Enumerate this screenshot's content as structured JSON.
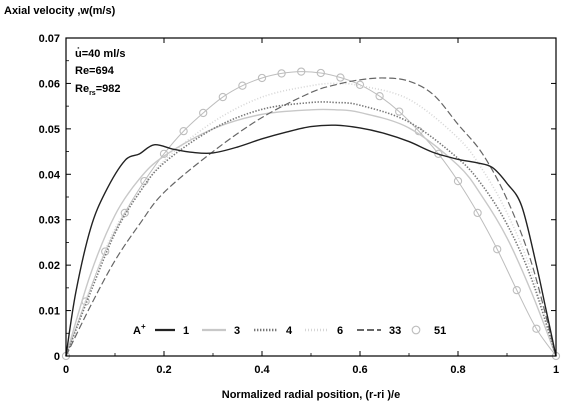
{
  "chart_data": {
    "type": "line",
    "title": "",
    "ylabel": "Axial velocity ,w(m/s)",
    "xlabel": "Normalized radial position, (r-ri )/e",
    "xlim": [
      0,
      1
    ],
    "ylim": [
      0,
      0.07
    ],
    "x_ticks": [
      "0",
      "0.2",
      "0.4",
      "0.6",
      "0.8",
      "1"
    ],
    "y_ticks": [
      "0",
      "0.01",
      "0.02",
      "0.03",
      "0.04",
      "0.05",
      "0.06",
      "0.07"
    ],
    "annotations": {
      "flow_rate": "u̇=40 ml/s",
      "re": "Re=694",
      "re_rs_prefix": "Re",
      "re_rs_sub": "rs",
      "re_rs_value": "=982"
    },
    "legend_title_base": "A",
    "legend_title_sup": "+",
    "legend_placement": "bottom",
    "series": [
      {
        "name": "1",
        "color": "#222222",
        "dash": "solid",
        "width": 1.4,
        "x": [
          0,
          0.02,
          0.05,
          0.08,
          0.12,
          0.15,
          0.18,
          0.22,
          0.26,
          0.3,
          0.35,
          0.4,
          0.45,
          0.5,
          0.55,
          0.6,
          0.65,
          0.7,
          0.75,
          0.8,
          0.84,
          0.87,
          0.9,
          0.93,
          0.96,
          0.98,
          1
        ],
        "y": [
          0,
          0.014,
          0.028,
          0.036,
          0.043,
          0.0445,
          0.0465,
          0.0455,
          0.0448,
          0.0447,
          0.046,
          0.0478,
          0.0493,
          0.0505,
          0.0508,
          0.0502,
          0.049,
          0.0472,
          0.0448,
          0.0433,
          0.0425,
          0.0415,
          0.038,
          0.033,
          0.02,
          0.01,
          0
        ]
      },
      {
        "name": "3",
        "color": "#c8c8c8",
        "dash": "solid",
        "width": 1.4,
        "x": [
          0,
          0.05,
          0.1,
          0.15,
          0.2,
          0.3,
          0.4,
          0.5,
          0.55,
          0.6,
          0.7,
          0.8,
          0.85,
          0.9,
          0.95,
          1
        ],
        "y": [
          0,
          0.018,
          0.031,
          0.039,
          0.044,
          0.05,
          0.0532,
          0.0542,
          0.0542,
          0.0536,
          0.0502,
          0.042,
          0.035,
          0.026,
          0.014,
          0
        ]
      },
      {
        "name": "4",
        "color": "#777777",
        "dash": "1.4,1.6",
        "width": 1.6,
        "x": [
          0,
          0.05,
          0.1,
          0.15,
          0.2,
          0.3,
          0.4,
          0.5,
          0.55,
          0.6,
          0.7,
          0.8,
          0.85,
          0.9,
          0.95,
          1
        ],
        "y": [
          0,
          0.014,
          0.027,
          0.036,
          0.0425,
          0.05,
          0.0543,
          0.0558,
          0.0558,
          0.0552,
          0.0515,
          0.0435,
          0.0375,
          0.029,
          0.017,
          0
        ]
      },
      {
        "name": "6",
        "color": "#d6d6d6",
        "dash": "1,2",
        "width": 1.6,
        "x": [
          0,
          0.05,
          0.1,
          0.15,
          0.2,
          0.3,
          0.4,
          0.5,
          0.55,
          0.6,
          0.7,
          0.8,
          0.85,
          0.9,
          0.95,
          1
        ],
        "y": [
          0,
          0.015,
          0.028,
          0.036,
          0.043,
          0.0515,
          0.057,
          0.0595,
          0.06,
          0.0595,
          0.0565,
          0.048,
          0.041,
          0.0315,
          0.0185,
          0
        ]
      },
      {
        "name": "33",
        "color": "#666666",
        "dash": "7,3",
        "width": 1.2,
        "x": [
          0,
          0.05,
          0.1,
          0.15,
          0.2,
          0.3,
          0.4,
          0.5,
          0.55,
          0.6,
          0.65,
          0.7,
          0.75,
          0.8,
          0.85,
          0.9,
          0.95,
          1
        ],
        "y": [
          0,
          0.011,
          0.021,
          0.029,
          0.036,
          0.045,
          0.0525,
          0.058,
          0.0597,
          0.0608,
          0.0612,
          0.0605,
          0.0575,
          0.051,
          0.0445,
          0.0345,
          0.0205,
          0
        ]
      },
      {
        "name": "51",
        "color": "#bdbdbd",
        "dash": "solid",
        "width": 1.0,
        "marker": "circle",
        "x": [
          0,
          0.04,
          0.08,
          0.12,
          0.16,
          0.2,
          0.24,
          0.28,
          0.32,
          0.36,
          0.4,
          0.44,
          0.48,
          0.52,
          0.56,
          0.6,
          0.64,
          0.68,
          0.72,
          0.76,
          0.8,
          0.84,
          0.88,
          0.92,
          0.96,
          1
        ],
        "y": [
          0,
          0.012,
          0.023,
          0.0315,
          0.0385,
          0.0445,
          0.0495,
          0.0535,
          0.057,
          0.0595,
          0.0612,
          0.0622,
          0.0626,
          0.0623,
          0.0613,
          0.0597,
          0.0572,
          0.0538,
          0.0495,
          0.0445,
          0.0385,
          0.0315,
          0.0235,
          0.0145,
          0.006,
          0
        ]
      }
    ]
  }
}
